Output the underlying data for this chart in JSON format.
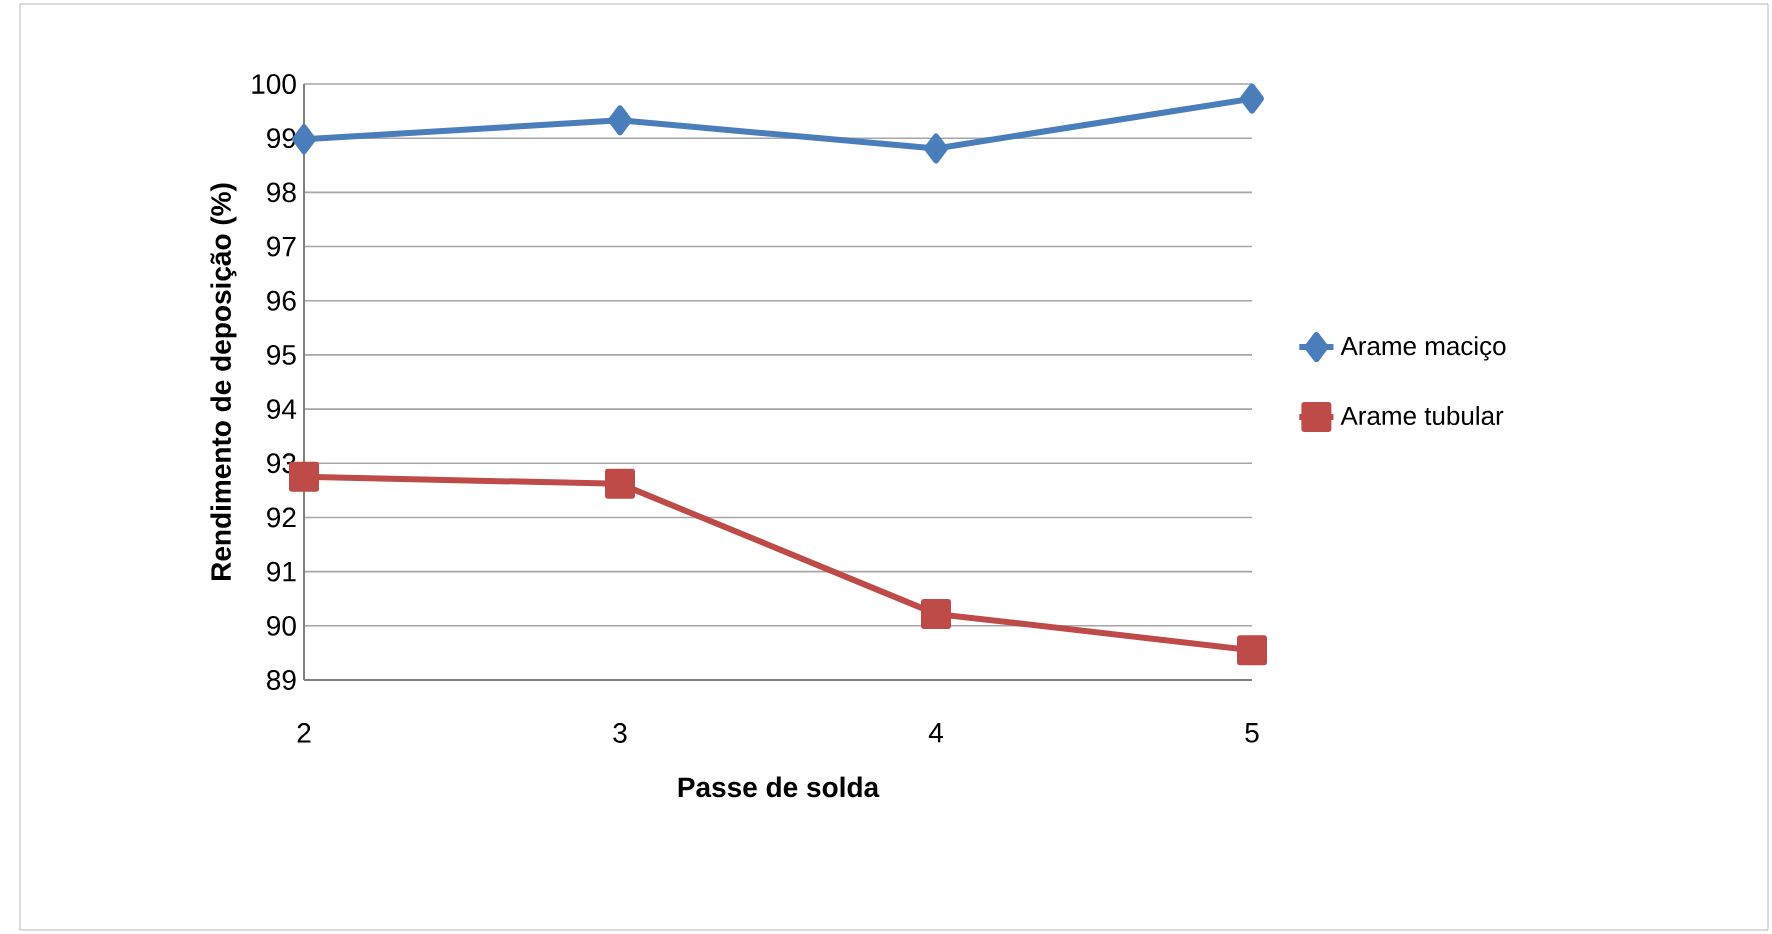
{
  "chart_data": {
    "type": "line",
    "xlabel": "Passe de solda",
    "ylabel": "Rendimento de deposição (%)",
    "categories": [
      "2",
      "3",
      "4",
      "5"
    ],
    "series": [
      {
        "name": "Arame maciço",
        "color": "#4a7ebb",
        "marker": "diamond",
        "values": [
          98.98,
          99.33,
          98.81,
          99.73
        ]
      },
      {
        "name": "Arame tubular",
        "color": "#be4b48",
        "marker": "square",
        "values": [
          92.75,
          92.62,
          90.22,
          89.55
        ]
      }
    ],
    "ylim": [
      89,
      100
    ],
    "yticks": [
      89,
      90,
      91,
      92,
      93,
      94,
      95,
      96,
      97,
      98,
      99,
      100
    ],
    "grid": "y",
    "legend": "right",
    "line_style": "solid"
  }
}
